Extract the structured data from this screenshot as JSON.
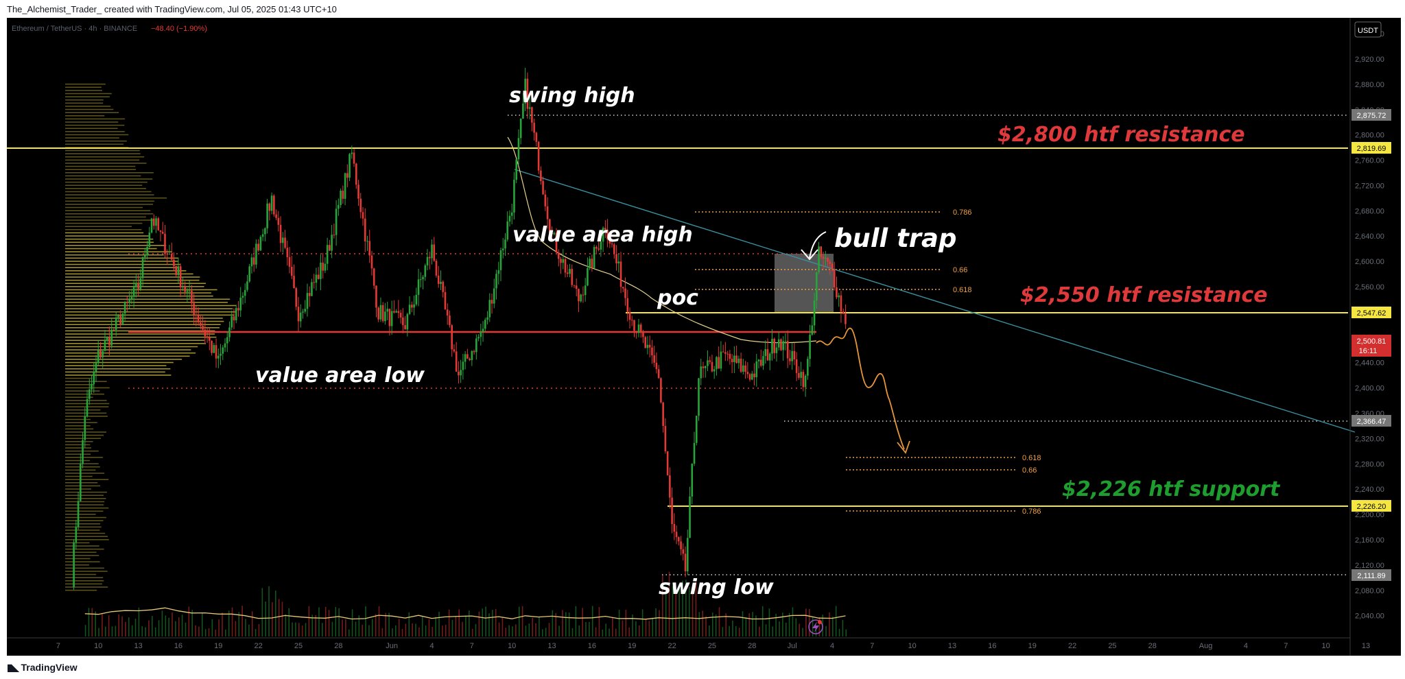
{
  "header": {
    "credit": "The_Alchemist_Trader_ created with TradingView.com, Jul 05, 2025 01:43 UTC+10"
  },
  "legend": {
    "symbol": "Ethereum / TetherUS · 4h · BINANCE",
    "change": "−48.40 (−1.90%)"
  },
  "price_axis": {
    "currency_label": "USDT",
    "ticks": [
      "2,960.00",
      "2,920.00",
      "2,880.00",
      "2,840.00",
      "2,800.00",
      "2,760.00",
      "2,720.00",
      "2,680.00",
      "2,640.00",
      "2,600.00",
      "2,560.00",
      "2,520.00",
      "2,480.00",
      "2,440.00",
      "2,400.00",
      "2,360.00",
      "2,320.00",
      "2,280.00",
      "2,240.00",
      "2,200.00",
      "2,160.00",
      "2,120.00",
      "2,080.00",
      "2,040.00"
    ],
    "badges": {
      "swing_high": "2,875.72",
      "res_2800": "2,819.69",
      "res_2550": "2,547.62",
      "last_price": "2,500.81",
      "countdown": "16:11",
      "level_2366": "2,366.47",
      "sup_2226": "2,226.20",
      "swing_low": "2,111.89"
    }
  },
  "time_axis": {
    "labels": [
      "7",
      "10",
      "13",
      "16",
      "19",
      "22",
      "25",
      "28",
      "Jun",
      "4",
      "7",
      "10",
      "13",
      "16",
      "19",
      "22",
      "25",
      "28",
      "Jul",
      "4",
      "7",
      "10",
      "13",
      "16",
      "19",
      "22",
      "25",
      "28",
      "Aug",
      "4",
      "7",
      "10",
      "13"
    ]
  },
  "annotations": {
    "swing_high": "swing high",
    "res_2800": "$2,800 htf resistance",
    "value_area_high": "value area high",
    "bull_trap": "bull trap",
    "poc": "poc",
    "res_2550": "$2,550 htf resistance",
    "value_area_low": "value area low",
    "support_2226": "$2,226 htf support",
    "swing_low": "swing low"
  },
  "fib_labels": {
    "upper_0786": "0.786",
    "upper_066": "0.66",
    "upper_0618": "0.618",
    "lower_0618": "0.618",
    "lower_066": "0.66",
    "lower_0786": "0.786"
  },
  "footer": {
    "logo_text": "TradingView"
  },
  "colors": {
    "background": "#000000",
    "resistance_text": "#e0393b",
    "support_text": "#1e9e2e",
    "level_line": "#f5e642",
    "poc_line": "#e53935",
    "trendline": "#3a8fa0",
    "fib": "#f0a040",
    "bull_candle": "#26a63a",
    "bear_candle": "#e53935",
    "volume_profile": "#c9b53a"
  },
  "chart_data": {
    "type": "candlestick",
    "title": "Ethereum / TetherUS · 4h · BINANCE",
    "ylim": [
      2005,
      2985
    ],
    "x_range": [
      "May 5",
      "Aug 14"
    ],
    "key_levels": {
      "swing_high": 2875.72,
      "resistance_2800": 2819.69,
      "resistance_2550": 2547.62,
      "poc": 2520,
      "value_area_high": 2645,
      "value_area_low": 2420,
      "level_2366": 2366.47,
      "support_2226": 2226.2,
      "swing_low": 2111.89,
      "last_price": 2500.81
    },
    "price_path": [
      {
        "date": "May 8",
        "price": 2100
      },
      {
        "date": "May 9",
        "price": 2360
      },
      {
        "date": "May 10",
        "price": 2450
      },
      {
        "date": "May 13",
        "price": 2560
      },
      {
        "date": "May 14",
        "price": 2670
      },
      {
        "date": "May 16",
        "price": 2580
      },
      {
        "date": "May 19",
        "price": 2440
      },
      {
        "date": "May 21",
        "price": 2560
      },
      {
        "date": "May 23",
        "price": 2700
      },
      {
        "date": "May 25",
        "price": 2520
      },
      {
        "date": "May 27",
        "price": 2600
      },
      {
        "date": "May 29",
        "price": 2770
      },
      {
        "date": "May 31",
        "price": 2520
      },
      {
        "date": "Jun 2",
        "price": 2500
      },
      {
        "date": "Jun 4",
        "price": 2620
      },
      {
        "date": "Jun 6",
        "price": 2420
      },
      {
        "date": "Jun 8",
        "price": 2500
      },
      {
        "date": "Jun 10",
        "price": 2690
      },
      {
        "date": "Jun 11",
        "price": 2875
      },
      {
        "date": "Jun 13",
        "price": 2640
      },
      {
        "date": "Jun 15",
        "price": 2540
      },
      {
        "date": "Jun 17",
        "price": 2660
      },
      {
        "date": "Jun 19",
        "price": 2510
      },
      {
        "date": "Jun 21",
        "price": 2420
      },
      {
        "date": "Jun 22",
        "price": 2180
      },
      {
        "date": "Jun 23",
        "price": 2112
      },
      {
        "date": "Jun 24",
        "price": 2420
      },
      {
        "date": "Jun 26",
        "price": 2450
      },
      {
        "date": "Jun 28",
        "price": 2420
      },
      {
        "date": "Jun 30",
        "price": 2480
      },
      {
        "date": "Jul 2",
        "price": 2410
      },
      {
        "date": "Jul 3",
        "price": 2610
      },
      {
        "date": "Jul 4",
        "price": 2585
      },
      {
        "date": "Jul 5",
        "price": 2500.81
      }
    ],
    "fibonacci_upper": [
      {
        "ratio": "0.786",
        "price": 2737
      },
      {
        "ratio": "0.66",
        "price": 2618
      },
      {
        "ratio": "0.618",
        "price": 2585
      }
    ],
    "fibonacci_lower": [
      {
        "ratio": "0.618",
        "price": 2305
      },
      {
        "ratio": "0.66",
        "price": 2284
      },
      {
        "ratio": "0.786",
        "price": 2216
      }
    ],
    "projection": [
      {
        "date": "Jul 5",
        "price": 2500
      },
      {
        "date": "Jul 6",
        "price": 2530
      },
      {
        "date": "Jul 7",
        "price": 2490
      },
      {
        "date": "Jul 8",
        "price": 2510
      },
      {
        "date": "Jul 9",
        "price": 2450
      },
      {
        "date": "Jul 10",
        "price": 2390
      },
      {
        "date": "Jul 11",
        "price": 2420
      },
      {
        "date": "Jul 12",
        "price": 2340
      },
      {
        "date": "Jul 13",
        "price": 2315
      }
    ],
    "legend": "none",
    "grid": false
  }
}
